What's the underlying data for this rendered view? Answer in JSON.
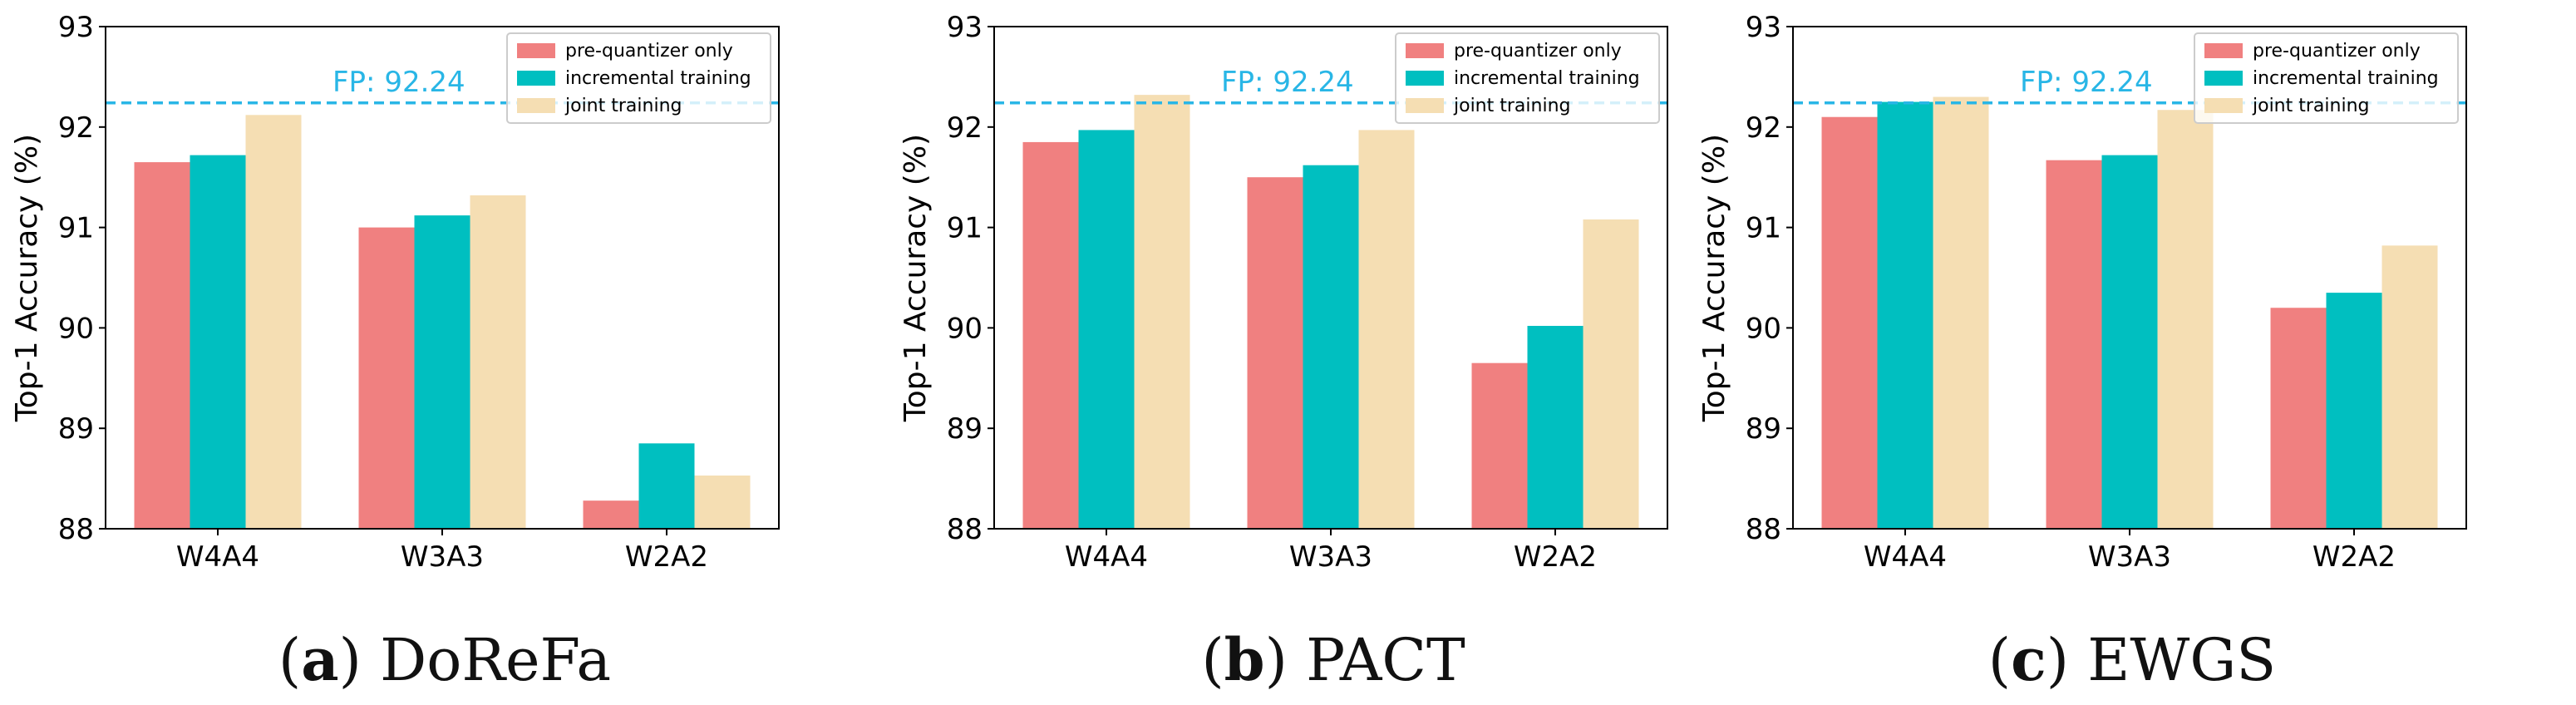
{
  "chart_data": [
    {
      "type": "bar",
      "caption_letter": "a",
      "caption_name": "DoReFa",
      "ylabel": "Top-1 Accuracy (%)",
      "ylim": [
        88,
        93
      ],
      "yticks": [
        "88",
        "89",
        "90",
        "91",
        "92",
        "93"
      ],
      "categories": [
        "W4A4",
        "W3A3",
        "W2A2"
      ],
      "series": [
        {
          "name": "pre-quantizer only",
          "color": "#f08080",
          "values": [
            91.65,
            91.0,
            88.28
          ]
        },
        {
          "name": "incremental training",
          "color": "#00bfc0",
          "values": [
            91.72,
            91.12,
            88.85
          ]
        },
        {
          "name": "joint training",
          "color": "#f5deb3",
          "values": [
            92.12,
            91.32,
            88.53
          ]
        }
      ],
      "reference": {
        "label": "FP: 92.24",
        "value": 92.24,
        "color": "#29b6e6"
      },
      "legend": "top-right"
    },
    {
      "type": "bar",
      "caption_letter": "b",
      "caption_name": "PACT",
      "ylabel": "Top-1 Accuracy (%)",
      "ylim": [
        88,
        93
      ],
      "yticks": [
        "88",
        "89",
        "90",
        "91",
        "92",
        "93"
      ],
      "categories": [
        "W4A4",
        "W3A3",
        "W2A2"
      ],
      "series": [
        {
          "name": "pre-quantizer only",
          "color": "#f08080",
          "values": [
            91.85,
            91.5,
            89.65
          ]
        },
        {
          "name": "incremental training",
          "color": "#00bfc0",
          "values": [
            91.97,
            91.62,
            90.02
          ]
        },
        {
          "name": "joint training",
          "color": "#f5deb3",
          "values": [
            92.32,
            91.97,
            91.08
          ]
        }
      ],
      "reference": {
        "label": "FP: 92.24",
        "value": 92.24,
        "color": "#29b6e6"
      },
      "legend": "top-right"
    },
    {
      "type": "bar",
      "caption_letter": "c",
      "caption_name": "EWGS",
      "ylabel": "Top-1 Accuracy (%)",
      "ylim": [
        88,
        93
      ],
      "yticks": [
        "88",
        "89",
        "90",
        "91",
        "92",
        "93"
      ],
      "categories": [
        "W4A4",
        "W3A3",
        "W2A2"
      ],
      "series": [
        {
          "name": "pre-quantizer only",
          "color": "#f08080",
          "values": [
            92.1,
            91.67,
            90.2
          ]
        },
        {
          "name": "incremental training",
          "color": "#00bfc0",
          "values": [
            92.25,
            91.72,
            90.35
          ]
        },
        {
          "name": "joint training",
          "color": "#f5deb3",
          "values": [
            92.3,
            92.17,
            90.82
          ]
        }
      ],
      "reference": {
        "label": "FP: 92.24",
        "value": 92.24,
        "color": "#29b6e6"
      },
      "legend": "top-right"
    }
  ]
}
